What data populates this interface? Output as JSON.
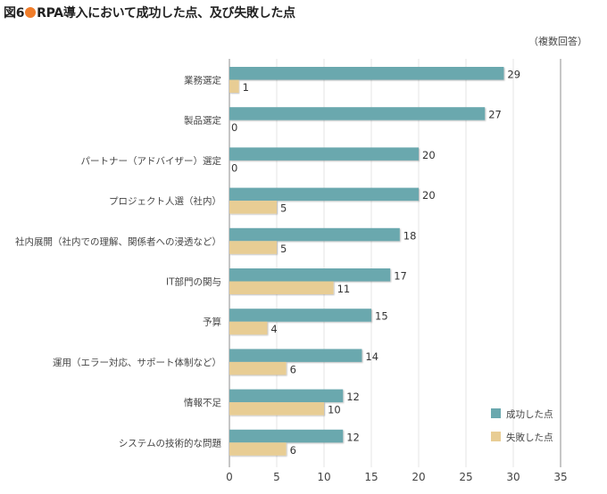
{
  "title": {
    "prefix": "図6",
    "text": "RPA導入において成功した点、及び失敗した点"
  },
  "note": "（複数回答）",
  "chart_data": {
    "type": "bar",
    "orientation": "horizontal",
    "title": "RPA導入において成功した点、及び失敗した点",
    "xlabel": "",
    "ylabel": "",
    "xlim": [
      0,
      35
    ],
    "xticks": [
      0,
      5,
      10,
      15,
      20,
      25,
      30,
      35
    ],
    "grid": true,
    "legend_position": "bottom-right",
    "categories": [
      "業務選定",
      "製品選定",
      "パートナー（アドバイザー）選定",
      "プロジェクト人選（社内）",
      "社内展開（社内での理解、関係者への浸透など）",
      "IT部門の関与",
      "予算",
      "運用（エラー対応、サポート体制など）",
      "情報不足",
      "システムの技術的な問題"
    ],
    "series": [
      {
        "name": "成功した点",
        "color": "#6aa8ae",
        "values": [
          29,
          27,
          20,
          20,
          18,
          17,
          15,
          14,
          12,
          12
        ]
      },
      {
        "name": "失敗した点",
        "color": "#e8cd94",
        "values": [
          1,
          0,
          0,
          5,
          5,
          11,
          4,
          6,
          10,
          6
        ]
      }
    ]
  }
}
